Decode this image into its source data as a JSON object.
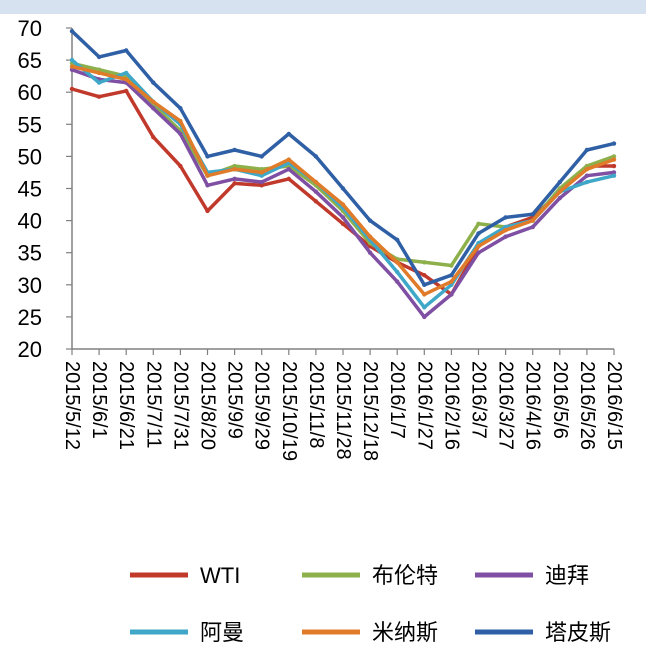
{
  "chart_data": {
    "type": "line",
    "title": "",
    "xlabel": "",
    "ylabel": "",
    "ylim": [
      20,
      70
    ],
    "yticks": [
      20,
      25,
      30,
      35,
      40,
      45,
      50,
      55,
      60,
      65,
      70
    ],
    "x": [
      "2015/5/12",
      "2015/6/1",
      "2015/6/21",
      "2015/7/11",
      "2015/7/31",
      "2015/8/20",
      "2015/9/9",
      "2015/9/29",
      "2015/10/19",
      "2015/11/8",
      "2015/11/28",
      "2015/12/18",
      "2016/1/7",
      "2016/1/27",
      "2016/2/16",
      "2016/3/7",
      "2016/3/27",
      "2016/4/16",
      "2016/5/6",
      "2016/5/26",
      "2016/6/15"
    ],
    "legend_position": "bottom",
    "series": [
      {
        "name": "WTI",
        "color": "#c0392b",
        "values": [
          60.5,
          59.3,
          60.2,
          53.0,
          48.5,
          41.5,
          45.8,
          45.5,
          46.5,
          43.0,
          39.5,
          36.0,
          33.5,
          31.5,
          28.5,
          36.0,
          39.0,
          40.5,
          44.5,
          48.5,
          48.5
        ]
      },
      {
        "name": "布伦特",
        "color": "#8db04b",
        "values": [
          64.5,
          63.5,
          62.5,
          58.0,
          54.0,
          47.0,
          48.5,
          48.0,
          48.5,
          45.5,
          41.5,
          36.5,
          34.0,
          33.5,
          33.0,
          39.5,
          39.0,
          40.0,
          45.0,
          48.5,
          50.0
        ]
      },
      {
        "name": "迪拜",
        "color": "#7e4fa3",
        "values": [
          63.5,
          62.0,
          61.5,
          57.5,
          53.5,
          45.5,
          46.5,
          46.0,
          48.0,
          44.5,
          40.5,
          35.0,
          30.5,
          25.0,
          28.5,
          35.0,
          37.5,
          39.0,
          43.5,
          47.0,
          47.5
        ]
      },
      {
        "name": "阿曼",
        "color": "#3fa7c7",
        "values": [
          65.0,
          61.5,
          63.0,
          58.5,
          55.0,
          47.5,
          48.0,
          47.0,
          49.0,
          46.0,
          42.0,
          37.0,
          32.0,
          26.5,
          30.0,
          36.5,
          39.0,
          40.0,
          44.5,
          46.0,
          47.0
        ]
      },
      {
        "name": "米纳斯",
        "color": "#e07b29",
        "values": [
          64.0,
          63.0,
          62.0,
          58.5,
          55.5,
          47.0,
          48.0,
          47.5,
          49.5,
          46.0,
          42.5,
          37.5,
          33.5,
          28.5,
          30.5,
          36.0,
          38.5,
          40.0,
          44.5,
          48.0,
          49.5
        ]
      },
      {
        "name": "塔皮斯",
        "color": "#2f5fa5",
        "values": [
          69.5,
          65.5,
          66.5,
          61.5,
          57.5,
          50.0,
          51.0,
          50.0,
          53.5,
          50.0,
          45.0,
          40.0,
          37.0,
          30.0,
          31.5,
          38.0,
          40.5,
          41.0,
          46.0,
          51.0,
          52.0
        ]
      }
    ]
  }
}
